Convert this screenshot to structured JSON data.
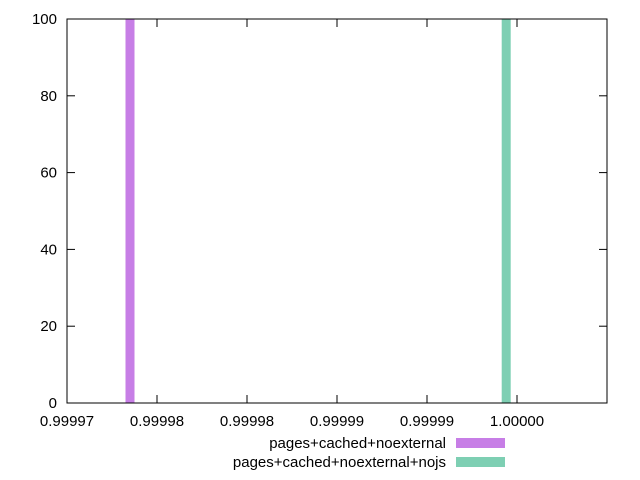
{
  "chart_data": {
    "type": "bar",
    "title": "",
    "xlabel": "",
    "ylabel": "",
    "xlim": [
      0.99997,
      1.0
    ],
    "ylim": [
      0,
      100
    ],
    "grid": false,
    "legend_position": "bottom",
    "x_tick_labels": [
      "0.99997",
      "0.99998",
      "0.99998",
      "0.99999",
      "0.99999",
      "1.00000"
    ],
    "x_tick_values": [
      0.99997,
      0.999975,
      0.99998,
      0.999985,
      0.99999,
      0.999995
    ],
    "y_tick_labels": [
      "0",
      "20",
      "40",
      "60",
      "80",
      "100"
    ],
    "y_tick_values": [
      0,
      20,
      40,
      60,
      80,
      100
    ],
    "series": [
      {
        "name": "pages+cached+noexternal",
        "x": 0.9999735,
        "value": 100,
        "color": "#c77ee6"
      },
      {
        "name": "pages+cached+noexternal+nojs",
        "x": 0.9999944,
        "value": 100,
        "color": "#7ecfb3"
      }
    ]
  }
}
